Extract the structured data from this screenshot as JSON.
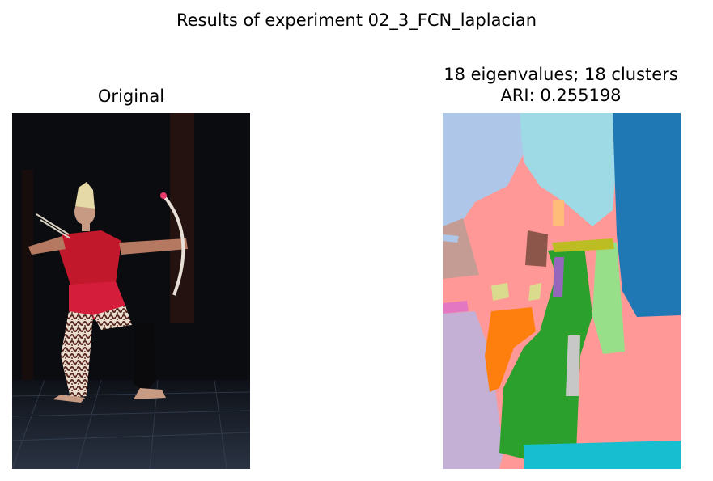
{
  "figure": {
    "suptitle": "Results of experiment 02_3_FCN_laplacian"
  },
  "left_panel": {
    "title": "Original"
  },
  "right_panel": {
    "title_line1": "18 eigenvalues; 18 clusters",
    "title_line2": "ARI: 0.255198"
  },
  "chart_data": {
    "type": "image",
    "panels": [
      {
        "title": "Original",
        "content": "photograph of a dancer holding a bow"
      },
      {
        "title": "18 eigenvalues; 18 clusters\nARI: 0.255198",
        "content": "segmentation map",
        "eigenvalues": 18,
        "clusters": 18,
        "ARI": 0.255198
      }
    ]
  },
  "colors": {
    "c_blue": "#1f77b4",
    "c_lightblue": "#aec7e8",
    "c_orange": "#ff7f0e",
    "c_lightorange": "#ffbb78",
    "c_green": "#2ca02c",
    "c_lightgreen": "#98df8a",
    "c_pink": "#ff9896",
    "c_purple": "#9467bd",
    "c_lavender": "#c5b0d5",
    "c_brown": "#8c564b",
    "c_tan": "#c49c94",
    "c_magenta": "#e377c2",
    "c_gray": "#c7c7c7",
    "c_olive": "#bcbd22",
    "c_khaki": "#dbdb8d",
    "c_cyan": "#17becf",
    "c_lightcyan": "#9edae5"
  }
}
